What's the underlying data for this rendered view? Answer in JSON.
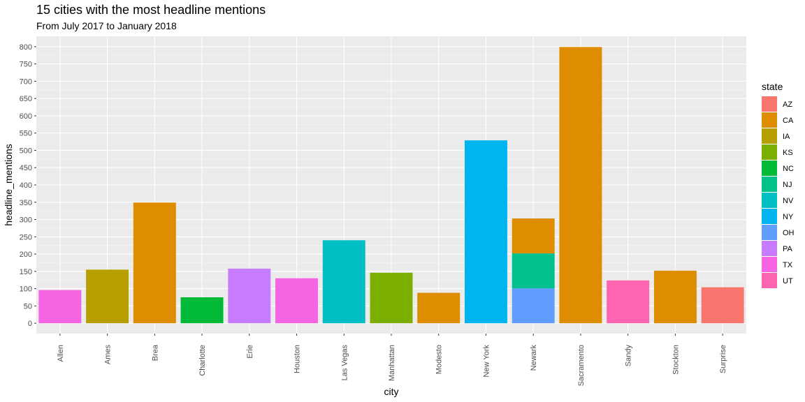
{
  "chart_data": {
    "type": "bar",
    "stacked": true,
    "title": "15 cities with the most headline mentions",
    "subtitle": "From July 2017 to January 2018",
    "xlabel": "city",
    "ylabel": "headline_mentions",
    "ylim": [
      -30,
      830
    ],
    "yticks": [
      0,
      50,
      100,
      150,
      200,
      250,
      300,
      350,
      400,
      450,
      500,
      550,
      600,
      650,
      700,
      750,
      800
    ],
    "grid": true,
    "legend_position": "right",
    "categories": [
      "Allen",
      "Ames",
      "Brea",
      "Charlotte",
      "Erie",
      "Houston",
      "Las Vegas",
      "Manhattan",
      "Modesto",
      "New York",
      "Newark",
      "Sacramento",
      "Sandy",
      "Stockton",
      "Surprise"
    ],
    "legend": {
      "title": "state",
      "entries": [
        {
          "label": "AZ",
          "color": "#F8766D"
        },
        {
          "label": "CA",
          "color": "#DE8C00"
        },
        {
          "label": "IA",
          "color": "#B79F00"
        },
        {
          "label": "KS",
          "color": "#7CAE00"
        },
        {
          "label": "NC",
          "color": "#00BA38"
        },
        {
          "label": "NJ",
          "color": "#00C08B"
        },
        {
          "label": "NV",
          "color": "#00BFC4"
        },
        {
          "label": "NY",
          "color": "#00B4F0"
        },
        {
          "label": "OH",
          "color": "#619CFF"
        },
        {
          "label": "PA",
          "color": "#C77CFF"
        },
        {
          "label": "TX",
          "color": "#F564E3"
        },
        {
          "label": "UT",
          "color": "#FF64B0"
        }
      ]
    },
    "bars": [
      {
        "city": "Allen",
        "segments": [
          {
            "state": "TX",
            "value": 96
          }
        ]
      },
      {
        "city": "Ames",
        "segments": [
          {
            "state": "IA",
            "value": 155
          }
        ]
      },
      {
        "city": "Brea",
        "segments": [
          {
            "state": "CA",
            "value": 349
          }
        ]
      },
      {
        "city": "Charlotte",
        "segments": [
          {
            "state": "NC",
            "value": 75
          }
        ]
      },
      {
        "city": "Erie",
        "segments": [
          {
            "state": "PA",
            "value": 158
          }
        ]
      },
      {
        "city": "Houston",
        "segments": [
          {
            "state": "TX",
            "value": 130
          }
        ]
      },
      {
        "city": "Las Vegas",
        "segments": [
          {
            "state": "NV",
            "value": 240
          }
        ]
      },
      {
        "city": "Manhattan",
        "segments": [
          {
            "state": "KS",
            "value": 146
          }
        ]
      },
      {
        "city": "Modesto",
        "segments": [
          {
            "state": "CA",
            "value": 88
          }
        ]
      },
      {
        "city": "New York",
        "segments": [
          {
            "state": "NY",
            "value": 529
          }
        ]
      },
      {
        "city": "Newark",
        "segments": [
          {
            "state": "OH",
            "value": 101
          },
          {
            "state": "NJ",
            "value": 101
          },
          {
            "state": "CA",
            "value": 101
          }
        ]
      },
      {
        "city": "Sacramento",
        "segments": [
          {
            "state": "CA",
            "value": 799
          }
        ]
      },
      {
        "city": "Sandy",
        "segments": [
          {
            "state": "UT",
            "value": 124
          }
        ]
      },
      {
        "city": "Stockton",
        "segments": [
          {
            "state": "CA",
            "value": 152
          }
        ]
      },
      {
        "city": "Surprise",
        "segments": [
          {
            "state": "AZ",
            "value": 104
          }
        ]
      }
    ]
  }
}
